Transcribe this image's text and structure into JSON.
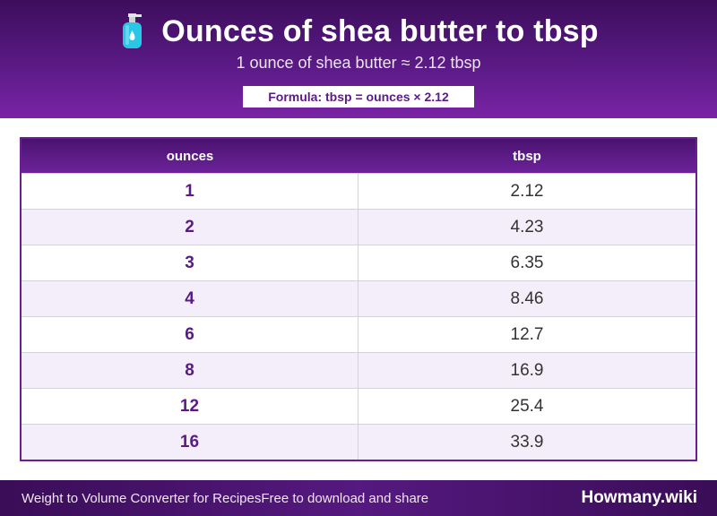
{
  "header": {
    "icon": "lotion-bottle-icon",
    "title": "Ounces of shea butter to tbsp",
    "subtitle": "1 ounce of shea butter ≈ 2.12 tbsp",
    "formula": "Formula: tbsp = ounces × 2.12"
  },
  "table": {
    "columns": [
      "ounces",
      "tbsp"
    ],
    "rows": [
      [
        "1",
        "2.12"
      ],
      [
        "2",
        "4.23"
      ],
      [
        "3",
        "6.35"
      ],
      [
        "4",
        "8.46"
      ],
      [
        "6",
        "12.7"
      ],
      [
        "8",
        "16.9"
      ],
      [
        "12",
        "25.4"
      ],
      [
        "16",
        "33.9"
      ]
    ]
  },
  "footer": {
    "left_text": "Weight to Volume Converter for Recipes",
    "mid_text": "Free to download and share",
    "brand": "Howmany.wiki"
  },
  "colors": {
    "header_purple": "#5a1a85",
    "accent_text": "#5a1a85",
    "row_alt": "#f4eefa",
    "bottle_fill": "#29c7e6"
  }
}
